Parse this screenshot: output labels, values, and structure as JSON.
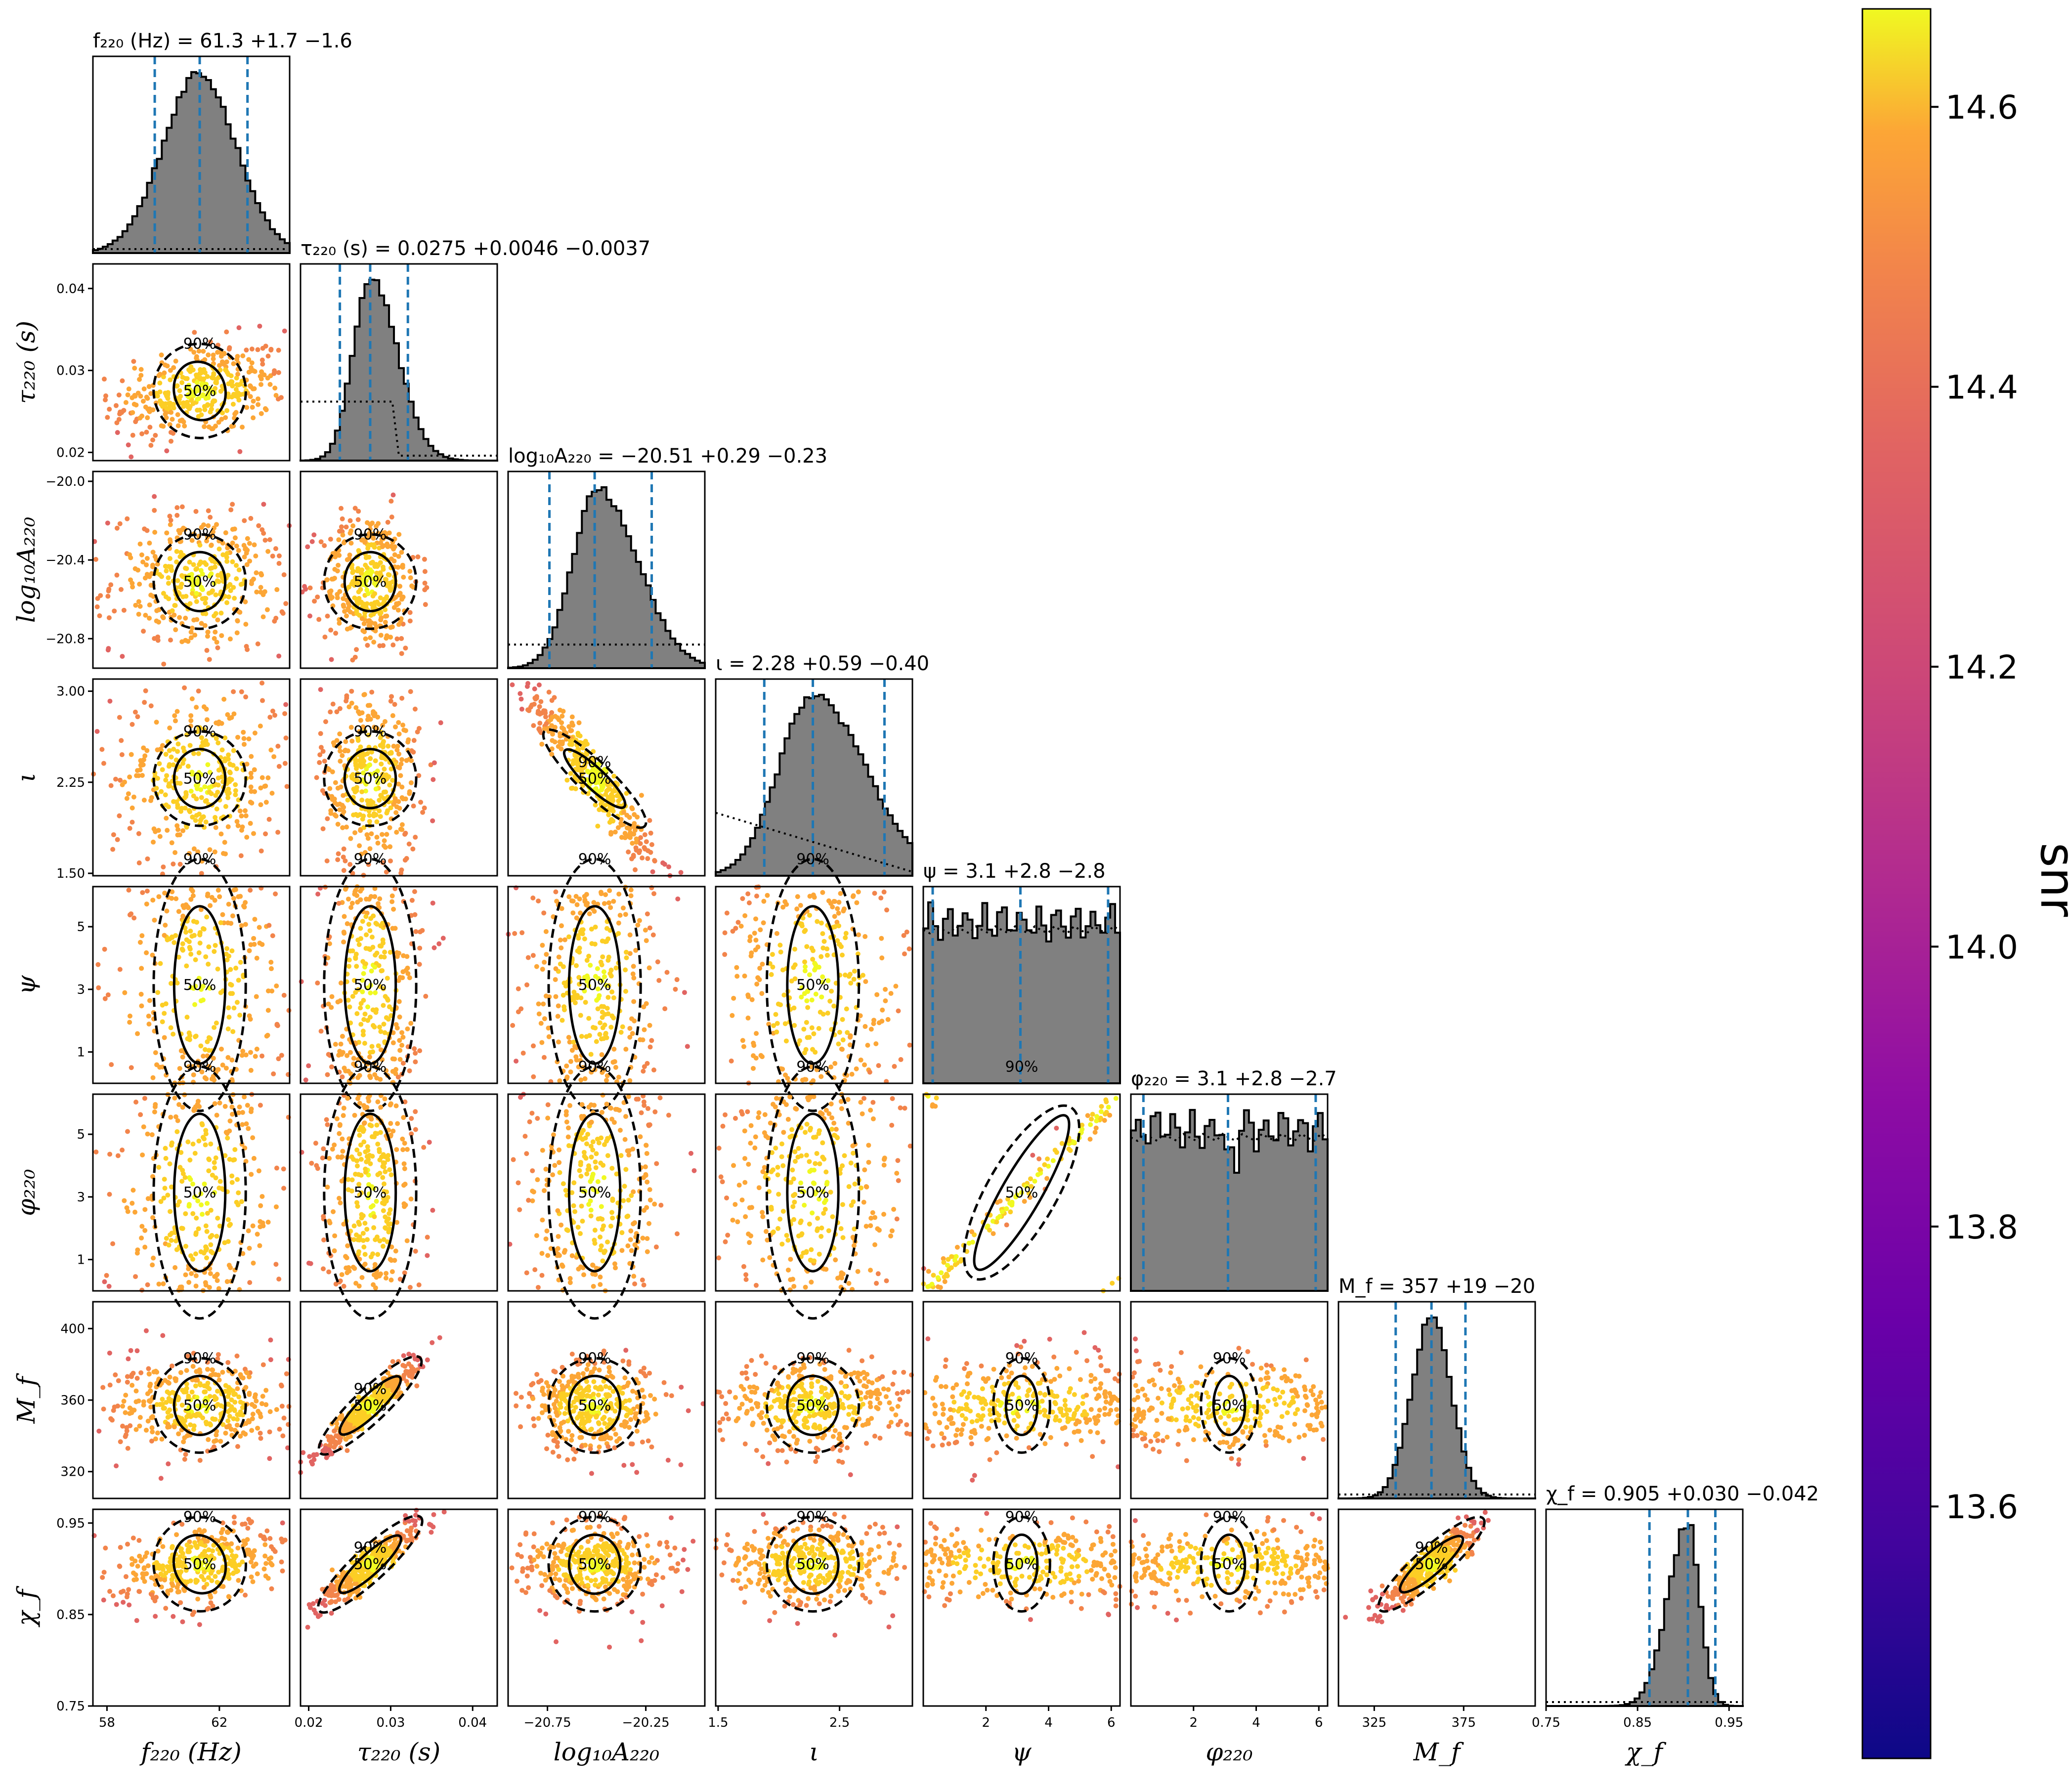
{
  "chart_data": {
    "type": "scatter",
    "subtype": "corner-plot",
    "parameters": [
      {
        "key": "f220",
        "label": "f₂₂₀ (Hz)",
        "title": "f₂₂₀ (Hz) = 61.3 +1.7 −1.6",
        "median": 61.3,
        "lo": 59.7,
        "hi": 63.0,
        "range": [
          57.5,
          64.5
        ],
        "ticks": [
          58,
          62
        ],
        "tick_labels": [
          "58",
          "62"
        ],
        "width": 1.3,
        "skew": 0,
        "prior": "flat"
      },
      {
        "key": "tau220",
        "label": "τ₂₂₀ (s)",
        "title": "τ₂₂₀ (s) = 0.0275 +0.0046 −0.0037",
        "median": 0.0275,
        "lo": 0.0238,
        "hi": 0.0321,
        "range": [
          0.019,
          0.043
        ],
        "ticks": [
          0.02,
          0.03,
          0.04
        ],
        "tick_labels": [
          "0.02",
          "0.03",
          "0.04"
        ],
        "width": 0.0025,
        "skew": 0.0008,
        "prior": "step"
      },
      {
        "key": "logA",
        "label": "log₁₀A₂₂₀",
        "title": "log₁₀A₂₂₀ = −20.51 +0.29 −0.23",
        "median": -20.51,
        "lo": -20.74,
        "hi": -20.22,
        "range": [
          -20.95,
          -19.95
        ],
        "ticks": [
          -20.75,
          -20.25
        ],
        "tick_labels": [
          "−20.75",
          "−20.25"
        ],
        "ticks_left": [
          -20.0,
          -20.4,
          -20.8
        ],
        "tick_labels_left": [
          "−20.0",
          "−20.4",
          "−20.8"
        ],
        "width": 0.15,
        "skew": 0.04,
        "prior": "flat"
      },
      {
        "key": "iota",
        "label": "ι",
        "title": "ι = 2.28 +0.59 −0.40",
        "median": 2.28,
        "lo": 1.88,
        "hi": 2.87,
        "range": [
          1.48,
          3.1
        ],
        "ticks": [
          1.5,
          2.5
        ],
        "tick_labels": [
          "1.5",
          "2.5"
        ],
        "ticks_left": [
          1.5,
          2.25,
          3.0
        ],
        "tick_labels_left": [
          "1.50",
          "2.25",
          "3.00"
        ],
        "width": 0.33,
        "skew": 0.1,
        "prior": "decline"
      },
      {
        "key": "psi",
        "label": "ψ",
        "title": "ψ = 3.1 +2.8 −2.8",
        "median": 3.1,
        "lo": 0.3,
        "hi": 5.9,
        "range": [
          0,
          6.28
        ],
        "ticks": [
          2,
          4,
          6
        ],
        "tick_labels": [
          "2",
          "4",
          "6"
        ],
        "ticks_left": [
          1,
          3,
          5
        ],
        "tick_labels_left": [
          "1",
          "3",
          "5"
        ],
        "width": 0,
        "skew": 0,
        "prior": "uniform"
      },
      {
        "key": "phi220",
        "label": "φ₂₂₀",
        "title": "φ₂₂₀ = 3.1 +2.8 −2.7",
        "median": 3.1,
        "lo": 0.4,
        "hi": 5.9,
        "range": [
          0,
          6.28
        ],
        "ticks": [
          2,
          4,
          6
        ],
        "tick_labels": [
          "2",
          "4",
          "6"
        ],
        "ticks_left": [
          1,
          3,
          5
        ],
        "tick_labels_left": [
          "1",
          "3",
          "5"
        ],
        "width": 0,
        "skew": 0,
        "prior": "uniform"
      },
      {
        "key": "Mf",
        "label": "M_f",
        "title": "M_f = 357 +19 −20",
        "median": 357,
        "lo": 337,
        "hi": 376,
        "range": [
          305,
          415
        ],
        "ticks": [
          325,
          375
        ],
        "tick_labels": [
          "325",
          "375"
        ],
        "ticks_left": [
          320,
          360,
          400
        ],
        "tick_labels_left": [
          "320",
          "360",
          "400"
        ],
        "width": 11,
        "skew": 0,
        "prior": "flat"
      },
      {
        "key": "chif",
        "label": "χ_f",
        "title": "χ_f = 0.905 +0.030 −0.042",
        "median": 0.905,
        "lo": 0.863,
        "hi": 0.935,
        "range": [
          0.75,
          0.965
        ],
        "ticks": [
          0.75,
          0.85,
          0.95
        ],
        "tick_labels": [
          "0.75",
          "0.85",
          "0.95"
        ],
        "ticks_left": [
          0.75,
          0.85,
          0.95
        ],
        "tick_labels_left": [
          "0.75",
          "0.85",
          "0.95"
        ],
        "width": 0.019,
        "skew": -0.006,
        "prior": "flat"
      }
    ],
    "contour_levels": [
      "50%",
      "90%"
    ],
    "colorbar": {
      "label": "snr",
      "min": 13.42,
      "max": 14.67,
      "ticks": [
        13.6,
        13.8,
        14.0,
        14.2,
        14.4,
        14.6
      ],
      "tick_labels": [
        "13.6",
        "13.8",
        "14.0",
        "14.2",
        "14.4",
        "14.6"
      ],
      "colormap": "plasma"
    },
    "colors": {
      "histogram_fill": "#808080",
      "quantile_line": "#1f77b4",
      "contour": "#000000"
    }
  }
}
